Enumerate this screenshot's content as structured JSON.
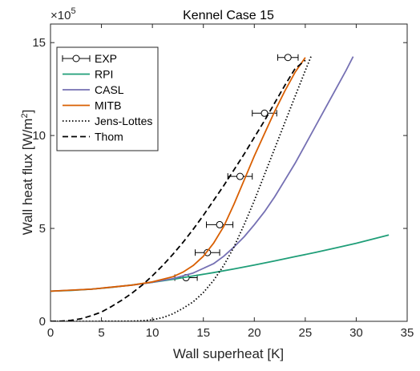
{
  "chart_data": {
    "type": "line",
    "title": "Kennel Case 15",
    "xlabel": "Wall superheat [K]",
    "ylabel_main": "Wall heat flux [W/m",
    "ylabel_sup": "2",
    "ylabel_end": "]",
    "y_multiplier_base": "×10",
    "y_multiplier_exp": "5",
    "xlim": [
      0,
      35
    ],
    "ylim": [
      0,
      16
    ],
    "xticks": [
      0,
      5,
      10,
      15,
      20,
      25,
      30,
      35
    ],
    "yticks": [
      0,
      5,
      10,
      15
    ],
    "grid": false,
    "legend_position": "top-left",
    "series": [
      {
        "name": "EXP",
        "kind": "markers_errorbar",
        "color": "#000000",
        "points": [
          {
            "x": 13.3,
            "y": 2.35,
            "xerr": 1.1
          },
          {
            "x": 15.4,
            "y": 3.7,
            "xerr": 1.2
          },
          {
            "x": 16.6,
            "y": 5.2,
            "xerr": 1.3
          },
          {
            "x": 18.6,
            "y": 7.8,
            "xerr": 1.2
          },
          {
            "x": 21.0,
            "y": 11.2,
            "xerr": 1.2
          },
          {
            "x": 23.3,
            "y": 14.2,
            "xerr": 1.0
          }
        ]
      },
      {
        "name": "RPI",
        "kind": "line",
        "color": "#1f9e78",
        "dash": "",
        "x": [
          0,
          2,
          4,
          6,
          8,
          10,
          12,
          14,
          16,
          18,
          20,
          22,
          24,
          26,
          28,
          30,
          33.2
        ],
        "y": [
          1.62,
          1.66,
          1.73,
          1.83,
          1.96,
          2.1,
          2.26,
          2.44,
          2.62,
          2.82,
          3.03,
          3.25,
          3.48,
          3.71,
          3.95,
          4.2,
          4.65
        ]
      },
      {
        "name": "CASL",
        "kind": "line",
        "color": "#7570b3",
        "dash": "",
        "x": [
          0,
          4,
          8,
          10,
          12,
          14,
          16,
          17,
          18,
          19,
          20,
          21,
          22,
          23,
          24,
          25,
          26,
          27,
          28,
          29,
          29.7
        ],
        "y": [
          1.62,
          1.73,
          1.95,
          2.1,
          2.3,
          2.6,
          3.1,
          3.5,
          4.0,
          4.55,
          5.2,
          5.9,
          6.7,
          7.6,
          8.5,
          9.5,
          10.5,
          11.5,
          12.5,
          13.5,
          14.25
        ]
      },
      {
        "name": "MITB",
        "kind": "line",
        "color": "#d95f02",
        "dash": "",
        "x": [
          0,
          4,
          8,
          10,
          12,
          13,
          14,
          15,
          16,
          17,
          18,
          19,
          20,
          21,
          22,
          23,
          24,
          25
        ],
        "y": [
          1.62,
          1.73,
          1.95,
          2.12,
          2.4,
          2.65,
          3.0,
          3.5,
          4.2,
          5.1,
          6.3,
          7.6,
          8.9,
          10.1,
          11.3,
          12.4,
          13.4,
          14.2
        ]
      },
      {
        "name": "Jens-Lottes",
        "kind": "line",
        "color": "#000000",
        "dash": "1.5 2.5",
        "x": [
          0,
          4,
          8,
          9,
          10,
          11,
          12,
          13,
          14,
          15,
          16,
          17,
          18,
          19,
          20,
          21,
          22,
          23,
          24,
          25,
          25.6
        ],
        "y": [
          0,
          0.001,
          0.01,
          0.03,
          0.08,
          0.2,
          0.4,
          0.7,
          1.05,
          1.55,
          2.2,
          3.0,
          4.0,
          5.2,
          6.5,
          7.9,
          9.3,
          10.7,
          12.1,
          13.5,
          14.3
        ]
      },
      {
        "name": "Thom",
        "kind": "line",
        "color": "#000000",
        "dash": "7 4",
        "x": [
          0,
          1,
          2,
          3,
          4,
          5,
          6,
          7,
          8,
          9,
          10,
          11,
          12,
          13,
          14,
          15,
          16,
          17,
          18,
          19,
          20,
          21,
          22,
          23,
          24,
          25
        ],
        "y": [
          0,
          0.01,
          0.05,
          0.14,
          0.3,
          0.5,
          0.8,
          1.14,
          1.52,
          1.95,
          2.45,
          3.0,
          3.6,
          4.25,
          4.95,
          5.7,
          6.5,
          7.3,
          8.15,
          9.0,
          9.9,
          10.8,
          11.75,
          12.7,
          13.6,
          14.05
        ]
      }
    ]
  }
}
